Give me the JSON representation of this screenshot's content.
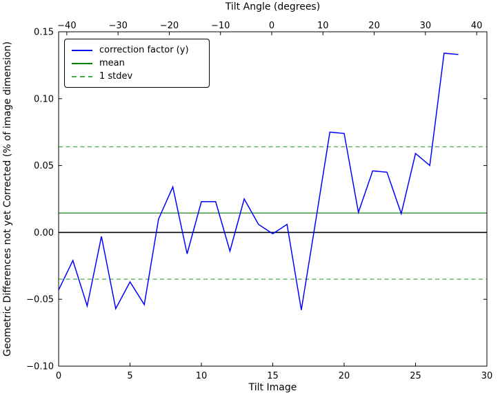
{
  "figure": {
    "background": "#ffffff",
    "top_axis_label": "Tilt Angle (degrees)",
    "x_axis_label": "Tilt Image",
    "y_axis_label": "Geometric Differences not yet Corrected (% of image dimension)"
  },
  "legend": {
    "position": "upper-left",
    "entries": [
      {
        "label": "correction factor (y)",
        "color": "#0000ff",
        "line_style": "solid"
      },
      {
        "label": "mean",
        "color": "#008000",
        "line_style": "solid"
      },
      {
        "label": "1 stdev",
        "color": "#44aa44",
        "line_style": "dashed"
      }
    ]
  },
  "chart_data": {
    "type": "line",
    "grid": false,
    "x_axis": {
      "label": "Tilt Image",
      "range": [
        0,
        30
      ],
      "tick_values": [
        0,
        5,
        10,
        15,
        20,
        25,
        30
      ],
      "tick_labels": [
        "0",
        "5",
        "10",
        "15",
        "20",
        "25",
        "30"
      ]
    },
    "top_axis": {
      "label": "Tilt Angle (degrees)",
      "degrees_at_left_edge": -41.6,
      "degrees_at_right_edge": 42.0,
      "tick_values": [
        -40,
        -30,
        -20,
        -10,
        0,
        10,
        20,
        30,
        40
      ],
      "tick_labels": [
        "−40",
        "−30",
        "−20",
        "−10",
        "0",
        "10",
        "20",
        "30",
        "40"
      ]
    },
    "y_axis": {
      "label": "Geometric Differences not yet Corrected (% of image dimension)",
      "range": [
        -0.1,
        0.15
      ],
      "tick_values": [
        0.15,
        0.1,
        0.05,
        0.0,
        -0.05,
        -0.1
      ],
      "tick_labels": [
        "0.15",
        "0.10",
        "0.05",
        "0.00",
        "−0.05",
        "−0.10"
      ]
    },
    "series": [
      {
        "name": "correction factor (y)",
        "type": "line",
        "color": "#0000ff",
        "line_style": "solid",
        "x": [
          0,
          1,
          2,
          3,
          4,
          5,
          6,
          7,
          8,
          9,
          10,
          11,
          12,
          13,
          14,
          15,
          16,
          17,
          18,
          19,
          20,
          21,
          22,
          23,
          24,
          25,
          26,
          27,
          28
        ],
        "y": [
          -0.043,
          -0.021,
          -0.055,
          -0.003,
          -0.057,
          -0.037,
          -0.054,
          0.01,
          0.034,
          -0.016,
          0.023,
          0.023,
          -0.014,
          0.025,
          0.006,
          -0.001,
          0.006,
          -0.058,
          0.008,
          0.075,
          0.074,
          0.015,
          0.046,
          0.045,
          0.014,
          0.059,
          0.05,
          0.134,
          0.133
        ]
      },
      {
        "name": "mean",
        "type": "hline",
        "color": "#008000",
        "line_style": "solid",
        "y": 0.0145
      },
      {
        "name": "1 stdev",
        "type": "hline",
        "color": "#44aa44",
        "line_style": "dashed",
        "y_upper": 0.064,
        "y_lower": -0.035
      }
    ],
    "zero_line": {
      "y": 0.0,
      "color": "#000000"
    },
    "statistics": {
      "mean": 0.0145,
      "stdev": 0.0495
    }
  }
}
